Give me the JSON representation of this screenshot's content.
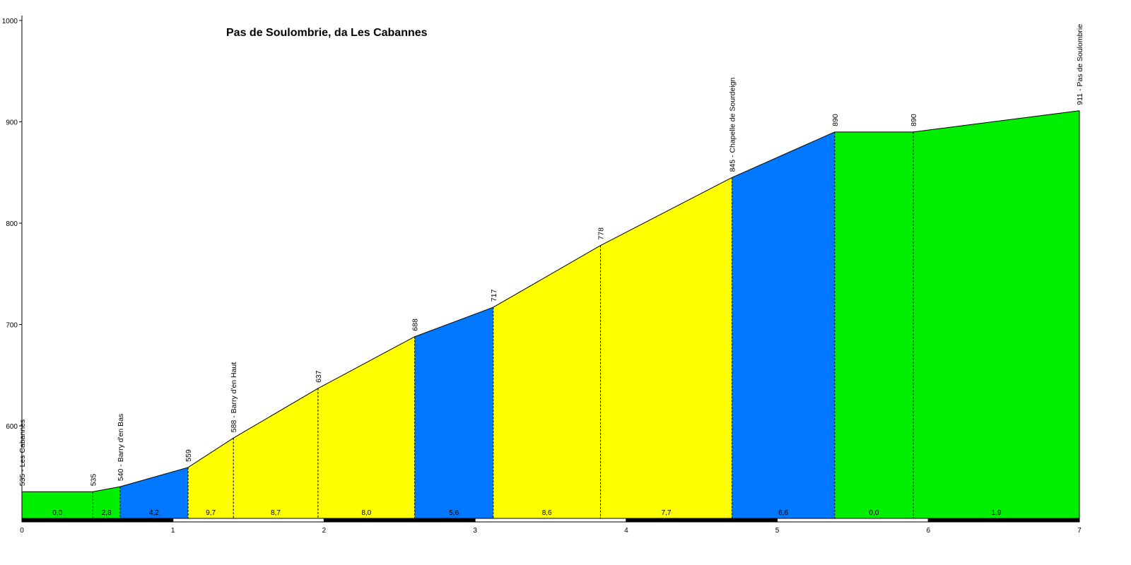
{
  "chart_data": {
    "type": "area",
    "title": "Pas de Soulombrie, da Les Cabannes",
    "xlabel": "",
    "ylabel": "",
    "xlim": [
      0,
      7
    ],
    "ylim": [
      505,
      1000
    ],
    "x_ticks": [
      "0",
      "1",
      "2",
      "3",
      "4",
      "5",
      "6",
      "7"
    ],
    "y_ticks": [
      "600",
      "700",
      "800",
      "900",
      "1000"
    ],
    "colors": {
      "green": "#00ee00",
      "blue": "#0077ff",
      "yellow": "#ffff00"
    },
    "profile_points": [
      {
        "x": 0.0,
        "y": 535,
        "label": "535 - Les Cabannes"
      },
      {
        "x": 0.47,
        "y": 535,
        "label": "535"
      },
      {
        "x": 0.65,
        "y": 540,
        "label": "540 - Barry d'en Bas"
      },
      {
        "x": 1.1,
        "y": 559,
        "label": "559"
      },
      {
        "x": 1.4,
        "y": 588,
        "label": "588 - Barry d'en Haut"
      },
      {
        "x": 1.96,
        "y": 637,
        "label": "637"
      },
      {
        "x": 2.6,
        "y": 688,
        "label": "688"
      },
      {
        "x": 3.12,
        "y": 717,
        "label": "717"
      },
      {
        "x": 3.83,
        "y": 778,
        "label": "778"
      },
      {
        "x": 4.7,
        "y": 845,
        "label": "845 - Chapelle de Sourdeign"
      },
      {
        "x": 5.38,
        "y": 890,
        "label": "890"
      },
      {
        "x": 5.9,
        "y": 890,
        "label": "890"
      },
      {
        "x": 7.0,
        "y": 911,
        "label": "911 - Pas de Soulombrie"
      }
    ],
    "segments": [
      {
        "from": 0.0,
        "to": 0.47,
        "gradient": "0,0",
        "color": "green"
      },
      {
        "from": 0.47,
        "to": 0.65,
        "gradient": "2,8",
        "color": "green"
      },
      {
        "from": 0.65,
        "to": 1.1,
        "gradient": "4,2",
        "color": "blue"
      },
      {
        "from": 1.1,
        "to": 1.4,
        "gradient": "9,7",
        "color": "yellow"
      },
      {
        "from": 1.4,
        "to": 1.96,
        "gradient": "8,7",
        "color": "yellow"
      },
      {
        "from": 1.96,
        "to": 2.6,
        "gradient": "8,0",
        "color": "yellow"
      },
      {
        "from": 2.6,
        "to": 3.12,
        "gradient": "5,6",
        "color": "blue"
      },
      {
        "from": 3.12,
        "to": 3.83,
        "gradient": "8,6",
        "color": "yellow"
      },
      {
        "from": 3.83,
        "to": 4.7,
        "gradient": "7,7",
        "color": "yellow"
      },
      {
        "from": 4.7,
        "to": 5.38,
        "gradient": "6,6",
        "color": "blue"
      },
      {
        "from": 5.38,
        "to": 5.9,
        "gradient": "0,0",
        "color": "green"
      },
      {
        "from": 5.9,
        "to": 7.0,
        "gradient": "1,9",
        "color": "green"
      }
    ]
  }
}
